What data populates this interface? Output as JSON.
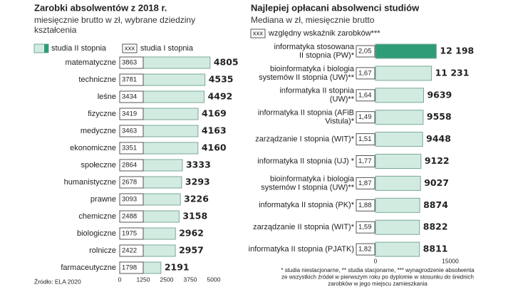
{
  "chart_data": [
    {
      "type": "bar",
      "orientation": "horizontal",
      "title": "Zarobki absolwentów z 2018 r.",
      "subtitle": [
        "miesięcznie brutto w zł, wybrane dziedziny",
        "kształcenia"
      ],
      "categories": [
        "matematyczne",
        "techniczne",
        "leśne",
        "fizyczne",
        "medyczne",
        "ekonomiczne",
        "społeczne",
        "humanistyczne",
        "prawne",
        "chemiczne",
        "biologiczne",
        "rolnicze",
        "farmaceutyczne"
      ],
      "series": [
        {
          "name": "studia II stopnia",
          "color": "#d2ebe0",
          "values": [
            4805,
            4535,
            4492,
            4169,
            4163,
            4160,
            3333,
            3293,
            3226,
            3158,
            2962,
            2957,
            2191
          ]
        },
        {
          "name": "studia I stopnia",
          "symbol": "xxx",
          "values": [
            3863,
            3781,
            3434,
            3419,
            3463,
            3351,
            2864,
            2678,
            3093,
            2488,
            1975,
            2422,
            1798
          ]
        }
      ],
      "xlim": [
        0,
        5000
      ],
      "xticks": [
        0,
        1250,
        2500,
        3750,
        5000
      ],
      "source": "Źródło: ELA 2020"
    },
    {
      "type": "bar",
      "orientation": "horizontal",
      "title": "Najlepiej opłacani absolwenci studiów",
      "subtitle": [
        "Mediana w zł, miesięcznie brutto"
      ],
      "categories": [
        [
          "informatyka stosowana",
          "II stopnia (PW)*"
        ],
        [
          "bioinformatyka i biologia",
          "systemów II stopnia (UW)**"
        ],
        [
          "informatyka II stopnia",
          "(UW)**"
        ],
        [
          "informatyka II stopnia (AFiB",
          "Vistula)*"
        ],
        [
          "zarządzanie I stopnia (WIT)*"
        ],
        [
          "informatyka II stopnia (UJ) *"
        ],
        [
          "bioinformatyka i biologia",
          "systemów  I stopnia (UW)**"
        ],
        [
          "informatyka II stopnia (PK)*"
        ],
        [
          "zarządzanie II stopnia (WIT)*"
        ],
        [
          "informatyka II stopnia (PJATK)"
        ]
      ],
      "values": [
        12198,
        11231,
        9639,
        9558,
        9448,
        9122,
        9027,
        8874,
        8822,
        8811
      ],
      "value_labels": [
        "12 198",
        "11 231",
        "9639",
        "9558",
        "9448",
        "9122",
        "9027",
        "8874",
        "8822",
        "8811"
      ],
      "colors": [
        "#2f9c78",
        "#d2ebe0",
        "#d2ebe0",
        "#d2ebe0",
        "#d2ebe0",
        "#d2ebe0",
        "#d2ebe0",
        "#d2ebe0",
        "#d2ebe0",
        "#d2ebe0"
      ],
      "index": {
        "name": "względny wskaźnik zarobków***",
        "symbol": "xxx",
        "values": [
          2.05,
          1.67,
          1.64,
          1.49,
          1.51,
          1.77,
          1.87,
          1.88,
          1.59,
          1.82
        ],
        "value_labels": [
          "2,05",
          "1,67",
          "1,64",
          "1,49",
          "1,51",
          "1,77",
          "1,87",
          "1,88",
          "1,59",
          "1,82"
        ]
      },
      "xlim": [
        0,
        15000
      ],
      "xticks": [
        0,
        15000
      ],
      "notes": [
        "* studia niestacjonarne, ** studia stacjonarne, *** wynagrodzenie absolwenta",
        "ze wszystkich źródeł w pierwszym roku po dyplomie w stosunku do średnich",
        "zarobków w jego miejscu zamieszkania"
      ]
    }
  ]
}
